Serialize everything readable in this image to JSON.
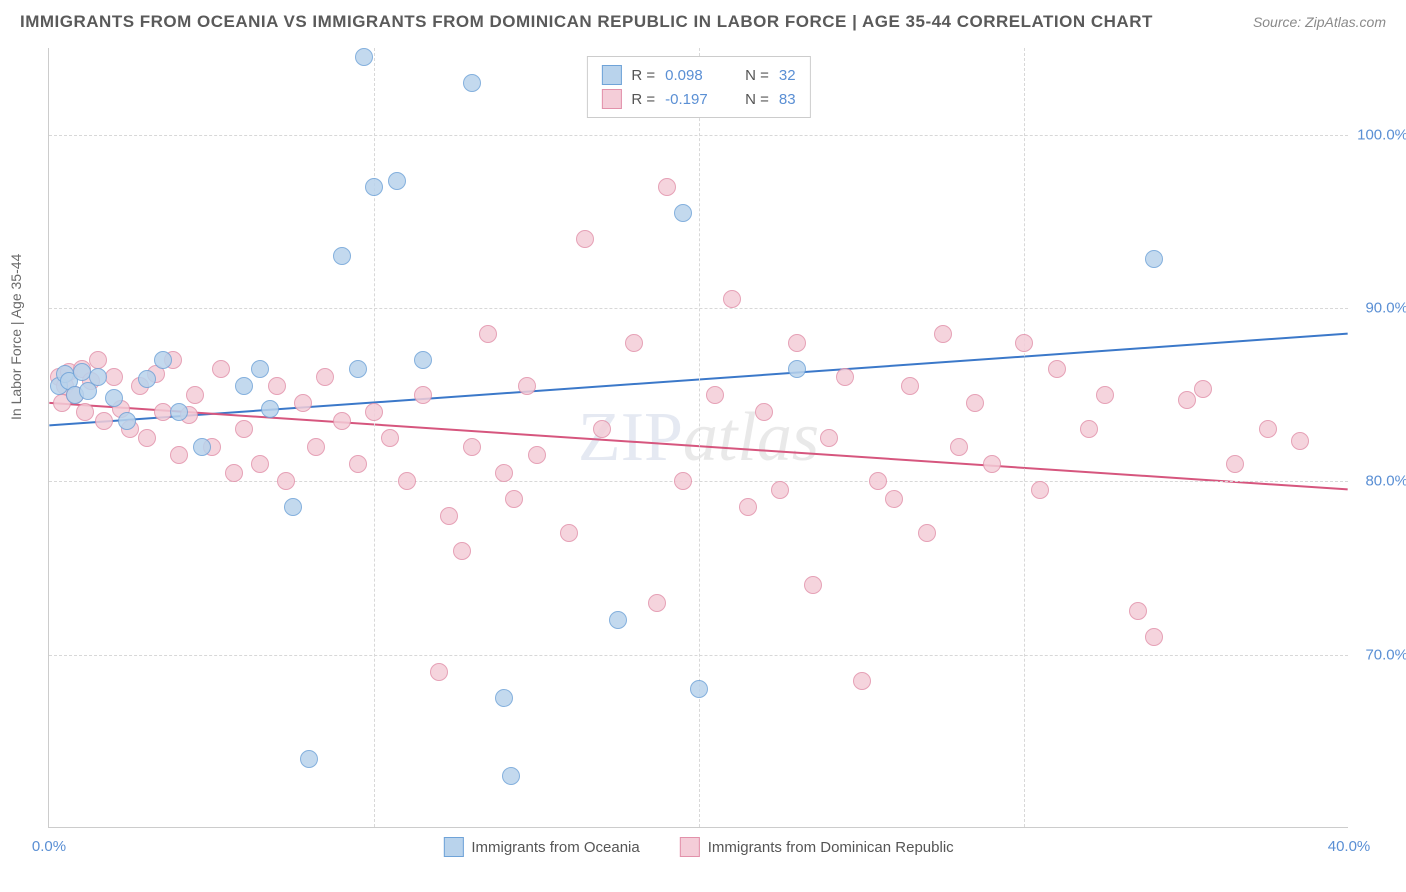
{
  "header": {
    "title": "IMMIGRANTS FROM OCEANIA VS IMMIGRANTS FROM DOMINICAN REPUBLIC IN LABOR FORCE | AGE 35-44 CORRELATION CHART",
    "source_label": "Source: ZipAtlas.com"
  },
  "watermark": {
    "part1": "ZIP",
    "part2": "atlas"
  },
  "chart": {
    "type": "scatter",
    "ylabel": "In Labor Force | Age 35-44",
    "background_color": "#ffffff",
    "grid_color": "#d8d8d8",
    "axis_color": "#cccccc",
    "tick_color": "#5a8fd4",
    "xlim": [
      0,
      40
    ],
    "ylim": [
      60,
      105
    ],
    "xticks": [
      {
        "pos": 0.0,
        "label": "0.0%"
      },
      {
        "pos": 40.0,
        "label": "40.0%"
      }
    ],
    "xgrid_positions": [
      10,
      20,
      30
    ],
    "yticks": [
      {
        "pos": 70,
        "label": "70.0%"
      },
      {
        "pos": 80,
        "label": "80.0%"
      },
      {
        "pos": 90,
        "label": "90.0%"
      },
      {
        "pos": 100,
        "label": "100.0%"
      }
    ],
    "point_radius": 9,
    "series": [
      {
        "name": "Immigrants from Oceania",
        "color_fill": "#b9d3ec",
        "color_stroke": "#6fa3d8",
        "r_value": "0.098",
        "n_value": "32",
        "trend": {
          "y_at_xmin": 83.2,
          "y_at_xmax": 88.5,
          "color": "#3b78c9",
          "width": 2
        },
        "points": [
          [
            0.3,
            85.5
          ],
          [
            0.5,
            86.2
          ],
          [
            0.6,
            85.8
          ],
          [
            0.8,
            85.0
          ],
          [
            1.0,
            86.3
          ],
          [
            1.2,
            85.2
          ],
          [
            1.5,
            86.0
          ],
          [
            2.0,
            84.8
          ],
          [
            2.4,
            83.5
          ],
          [
            3.0,
            85.9
          ],
          [
            3.5,
            87.0
          ],
          [
            4.0,
            84.0
          ],
          [
            4.7,
            82.0
          ],
          [
            6.0,
            85.5
          ],
          [
            6.5,
            86.5
          ],
          [
            6.8,
            84.2
          ],
          [
            7.5,
            78.5
          ],
          [
            8.0,
            64.0
          ],
          [
            9.0,
            93.0
          ],
          [
            9.5,
            86.5
          ],
          [
            9.7,
            104.5
          ],
          [
            10.0,
            97.0
          ],
          [
            10.7,
            97.3
          ],
          [
            11.5,
            87.0
          ],
          [
            13.0,
            103.0
          ],
          [
            14.0,
            67.5
          ],
          [
            14.2,
            63.0
          ],
          [
            17.5,
            72.0
          ],
          [
            19.5,
            95.5
          ],
          [
            20.0,
            68.0
          ],
          [
            23.0,
            86.5
          ],
          [
            34.0,
            92.8
          ]
        ]
      },
      {
        "name": "Immigrants from Dominican Republic",
        "color_fill": "#f4cdd8",
        "color_stroke": "#e291aa",
        "r_value": "-0.197",
        "n_value": "83",
        "trend": {
          "y_at_xmin": 84.5,
          "y_at_xmax": 79.5,
          "color": "#d6567e",
          "width": 2
        },
        "points": [
          [
            0.3,
            86.0
          ],
          [
            0.4,
            84.5
          ],
          [
            0.5,
            85.5
          ],
          [
            0.6,
            86.3
          ],
          [
            0.8,
            85.0
          ],
          [
            1.0,
            86.5
          ],
          [
            1.1,
            84.0
          ],
          [
            1.3,
            85.8
          ],
          [
            1.5,
            87.0
          ],
          [
            1.7,
            83.5
          ],
          [
            2.0,
            86.0
          ],
          [
            2.2,
            84.2
          ],
          [
            2.5,
            83.0
          ],
          [
            2.8,
            85.5
          ],
          [
            3.0,
            82.5
          ],
          [
            3.3,
            86.2
          ],
          [
            3.5,
            84.0
          ],
          [
            3.8,
            87.0
          ],
          [
            4.0,
            81.5
          ],
          [
            4.3,
            83.8
          ],
          [
            4.5,
            85.0
          ],
          [
            5.0,
            82.0
          ],
          [
            5.3,
            86.5
          ],
          [
            5.7,
            80.5
          ],
          [
            6.0,
            83.0
          ],
          [
            6.5,
            81.0
          ],
          [
            7.0,
            85.5
          ],
          [
            7.3,
            80.0
          ],
          [
            7.8,
            84.5
          ],
          [
            8.2,
            82.0
          ],
          [
            8.5,
            86.0
          ],
          [
            9.0,
            83.5
          ],
          [
            9.5,
            81.0
          ],
          [
            10.0,
            84.0
          ],
          [
            10.5,
            82.5
          ],
          [
            11.0,
            80.0
          ],
          [
            11.5,
            85.0
          ],
          [
            12.0,
            69.0
          ],
          [
            12.3,
            78.0
          ],
          [
            12.7,
            76.0
          ],
          [
            13.0,
            82.0
          ],
          [
            13.5,
            88.5
          ],
          [
            14.0,
            80.5
          ],
          [
            14.3,
            79.0
          ],
          [
            14.7,
            85.5
          ],
          [
            15.0,
            81.5
          ],
          [
            16.0,
            77.0
          ],
          [
            16.5,
            94.0
          ],
          [
            17.0,
            83.0
          ],
          [
            18.0,
            88.0
          ],
          [
            18.7,
            73.0
          ],
          [
            19.0,
            97.0
          ],
          [
            19.5,
            80.0
          ],
          [
            20.5,
            85.0
          ],
          [
            21.0,
            90.5
          ],
          [
            21.5,
            78.5
          ],
          [
            22.0,
            84.0
          ],
          [
            22.5,
            79.5
          ],
          [
            23.0,
            88.0
          ],
          [
            23.5,
            74.0
          ],
          [
            24.0,
            82.5
          ],
          [
            24.5,
            86.0
          ],
          [
            25.0,
            68.5
          ],
          [
            25.5,
            80.0
          ],
          [
            26.0,
            79.0
          ],
          [
            26.5,
            85.5
          ],
          [
            27.0,
            77.0
          ],
          [
            27.5,
            88.5
          ],
          [
            28.0,
            82.0
          ],
          [
            28.5,
            84.5
          ],
          [
            29.0,
            81.0
          ],
          [
            30.0,
            88.0
          ],
          [
            30.5,
            79.5
          ],
          [
            31.0,
            86.5
          ],
          [
            32.0,
            83.0
          ],
          [
            32.5,
            85.0
          ],
          [
            33.5,
            72.5
          ],
          [
            34.0,
            71.0
          ],
          [
            35.0,
            84.7
          ],
          [
            35.5,
            85.3
          ],
          [
            36.5,
            81.0
          ],
          [
            37.5,
            83.0
          ],
          [
            38.5,
            82.3
          ]
        ]
      }
    ],
    "legend_top": {
      "r_prefix": "R  =",
      "n_prefix": "N  ="
    },
    "bottom_legend": {
      "items": [
        {
          "swatch_fill": "#b9d3ec",
          "swatch_stroke": "#6fa3d8",
          "label": "Immigrants from Oceania"
        },
        {
          "swatch_fill": "#f4cdd8",
          "swatch_stroke": "#e291aa",
          "label": "Immigrants from Dominican Republic"
        }
      ]
    }
  }
}
